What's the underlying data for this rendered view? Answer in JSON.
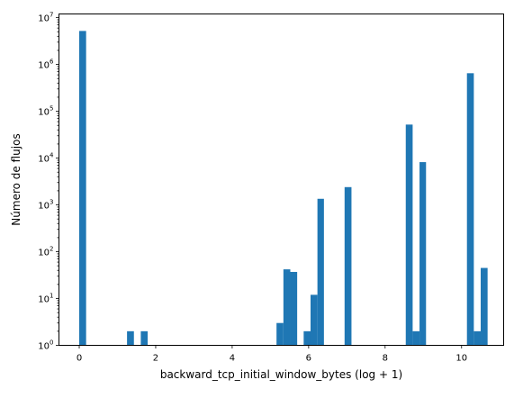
{
  "chart_data": {
    "type": "bar",
    "subtype": "histogram",
    "title": "",
    "xlabel": "backward_tcp_initial_window_bytes (log + 1)",
    "ylabel": "Número de flujos",
    "yscale": "log",
    "xlim": [
      -0.53,
      11.1
    ],
    "ylim": [
      1,
      12000000
    ],
    "grid": false,
    "legend": "none",
    "bar_color": "#1f77b4",
    "xticks": [
      {
        "value": 0,
        "label": "0"
      },
      {
        "value": 2,
        "label": "2"
      },
      {
        "value": 4,
        "label": "4"
      },
      {
        "value": 6,
        "label": "6"
      },
      {
        "value": 8,
        "label": "8"
      },
      {
        "value": 10,
        "label": "10"
      }
    ],
    "yticks": [
      {
        "exp": 0,
        "base": "10",
        "sup": "0"
      },
      {
        "exp": 1,
        "base": "10",
        "sup": "1"
      },
      {
        "exp": 2,
        "base": "10",
        "sup": "2"
      },
      {
        "exp": 3,
        "base": "10",
        "sup": "3"
      },
      {
        "exp": 4,
        "base": "10",
        "sup": "4"
      },
      {
        "exp": 5,
        "base": "10",
        "sup": "5"
      },
      {
        "exp": 6,
        "base": "10",
        "sup": "6"
      },
      {
        "exp": 7,
        "base": "10",
        "sup": "7"
      }
    ],
    "bins": [
      {
        "x0": 0.0,
        "x1": 0.18,
        "count": 5200000
      },
      {
        "x0": 1.25,
        "x1": 1.43,
        "count": 2
      },
      {
        "x0": 1.61,
        "x1": 1.79,
        "count": 2
      },
      {
        "x0": 5.16,
        "x1": 5.34,
        "count": 3
      },
      {
        "x0": 5.34,
        "x1": 5.52,
        "count": 42
      },
      {
        "x0": 5.52,
        "x1": 5.7,
        "count": 37
      },
      {
        "x0": 5.87,
        "x1": 6.05,
        "count": 2
      },
      {
        "x0": 6.05,
        "x1": 6.23,
        "count": 12
      },
      {
        "x0": 6.23,
        "x1": 6.4,
        "count": 1350
      },
      {
        "x0": 6.94,
        "x1": 7.12,
        "count": 2400
      },
      {
        "x0": 8.54,
        "x1": 8.72,
        "count": 52000
      },
      {
        "x0": 8.72,
        "x1": 8.9,
        "count": 2
      },
      {
        "x0": 8.9,
        "x1": 9.07,
        "count": 8200
      },
      {
        "x0": 10.14,
        "x1": 10.32,
        "count": 650000
      },
      {
        "x0": 10.32,
        "x1": 10.5,
        "count": 2
      },
      {
        "x0": 10.5,
        "x1": 10.68,
        "count": 45
      }
    ]
  }
}
